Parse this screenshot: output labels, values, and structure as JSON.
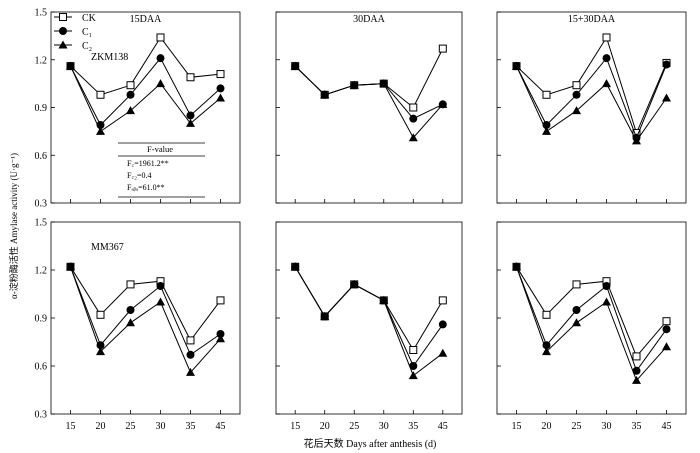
{
  "figure": {
    "ylabel": "α-淀粉酶活性 Amylase activity (U·g⁻¹)",
    "xlabel": "花后天数 Days after anthesis (d)"
  },
  "legend": [
    {
      "label": "CK",
      "marker": "square-open"
    },
    {
      "label": "C₁",
      "marker": "circle"
    },
    {
      "label": "C₂",
      "marker": "triangle"
    }
  ],
  "ftable": {
    "header": "F-value",
    "rows": [
      "F꜀=1961.2**",
      "F꜀₂=0.4",
      "Fₐᵦₐ=61.0**"
    ]
  },
  "chart_data": [
    {
      "type": "line",
      "panel": "top-left",
      "title": "15DAA",
      "variety": "ZKM138",
      "x": [
        15,
        20,
        25,
        30,
        35,
        45
      ],
      "ylim": [
        0.3,
        1.5
      ],
      "yticks": [
        0.3,
        0.6,
        0.9,
        1.2,
        1.5
      ],
      "series": [
        {
          "name": "CK",
          "values": [
            1.16,
            0.98,
            1.04,
            1.34,
            1.09,
            1.11
          ]
        },
        {
          "name": "C₁",
          "values": [
            1.16,
            0.79,
            0.98,
            1.21,
            0.85,
            1.02
          ]
        },
        {
          "name": "C₂",
          "values": [
            1.16,
            0.75,
            0.88,
            1.05,
            0.8,
            0.96
          ]
        }
      ]
    },
    {
      "type": "line",
      "panel": "top-middle",
      "title": "30DAA",
      "variety": "",
      "x": [
        15,
        20,
        25,
        30,
        35,
        45
      ],
      "ylim": [
        0.3,
        1.5
      ],
      "yticks": [
        0.3,
        0.6,
        0.9,
        1.2,
        1.5
      ],
      "series": [
        {
          "name": "CK",
          "values": [
            1.16,
            0.98,
            1.04,
            1.05,
            0.9,
            1.27
          ]
        },
        {
          "name": "C₁",
          "values": [
            1.16,
            0.98,
            1.04,
            1.05,
            0.83,
            0.92
          ]
        },
        {
          "name": "C₂",
          "values": [
            1.16,
            0.98,
            1.04,
            1.05,
            0.71,
            0.92
          ]
        }
      ]
    },
    {
      "type": "line",
      "panel": "top-right",
      "title": "15+30DAA",
      "variety": "",
      "x": [
        15,
        20,
        25,
        30,
        35,
        45
      ],
      "ylim": [
        0.3,
        1.5
      ],
      "yticks": [
        0.3,
        0.6,
        0.9,
        1.2,
        1.5
      ],
      "series": [
        {
          "name": "CK",
          "values": [
            1.16,
            0.98,
            1.04,
            1.34,
            0.74,
            1.18
          ]
        },
        {
          "name": "C₁",
          "values": [
            1.16,
            0.79,
            0.98,
            1.21,
            0.71,
            1.17
          ]
        },
        {
          "name": "C₂",
          "values": [
            1.16,
            0.75,
            0.88,
            1.05,
            0.69,
            0.96
          ]
        }
      ]
    },
    {
      "type": "line",
      "panel": "bottom-left",
      "title": "",
      "variety": "MM367",
      "x": [
        15,
        20,
        25,
        30,
        35,
        45
      ],
      "ylim": [
        0.3,
        1.5
      ],
      "yticks": [
        0.3,
        0.6,
        0.9,
        1.2,
        1.5
      ],
      "series": [
        {
          "name": "CK",
          "values": [
            1.22,
            0.92,
            1.11,
            1.13,
            0.76,
            1.01
          ]
        },
        {
          "name": "C₁",
          "values": [
            1.22,
            0.73,
            0.95,
            1.1,
            0.67,
            0.8
          ]
        },
        {
          "name": "C₂",
          "values": [
            1.22,
            0.69,
            0.87,
            1.0,
            0.56,
            0.77
          ]
        }
      ]
    },
    {
      "type": "line",
      "panel": "bottom-middle",
      "title": "",
      "variety": "",
      "x": [
        15,
        20,
        25,
        30,
        35,
        45
      ],
      "ylim": [
        0.3,
        1.5
      ],
      "yticks": [
        0.3,
        0.6,
        0.9,
        1.2,
        1.5
      ],
      "series": [
        {
          "name": "CK",
          "values": [
            1.22,
            0.91,
            1.11,
            1.01,
            0.7,
            1.01
          ]
        },
        {
          "name": "C₁",
          "values": [
            1.22,
            0.91,
            1.11,
            1.01,
            0.6,
            0.86
          ]
        },
        {
          "name": "C₂",
          "values": [
            1.22,
            0.91,
            1.11,
            1.01,
            0.54,
            0.68
          ]
        }
      ]
    },
    {
      "type": "line",
      "panel": "bottom-right",
      "title": "",
      "variety": "",
      "x": [
        15,
        20,
        25,
        30,
        35,
        45
      ],
      "ylim": [
        0.3,
        1.5
      ],
      "yticks": [
        0.3,
        0.6,
        0.9,
        1.2,
        1.5
      ],
      "series": [
        {
          "name": "CK",
          "values": [
            1.22,
            0.92,
            1.11,
            1.13,
            0.66,
            0.88
          ]
        },
        {
          "name": "C₁",
          "values": [
            1.22,
            0.73,
            0.95,
            1.1,
            0.57,
            0.83
          ]
        },
        {
          "name": "C₂",
          "values": [
            1.22,
            0.69,
            0.87,
            1.0,
            0.51,
            0.72
          ]
        }
      ]
    }
  ]
}
